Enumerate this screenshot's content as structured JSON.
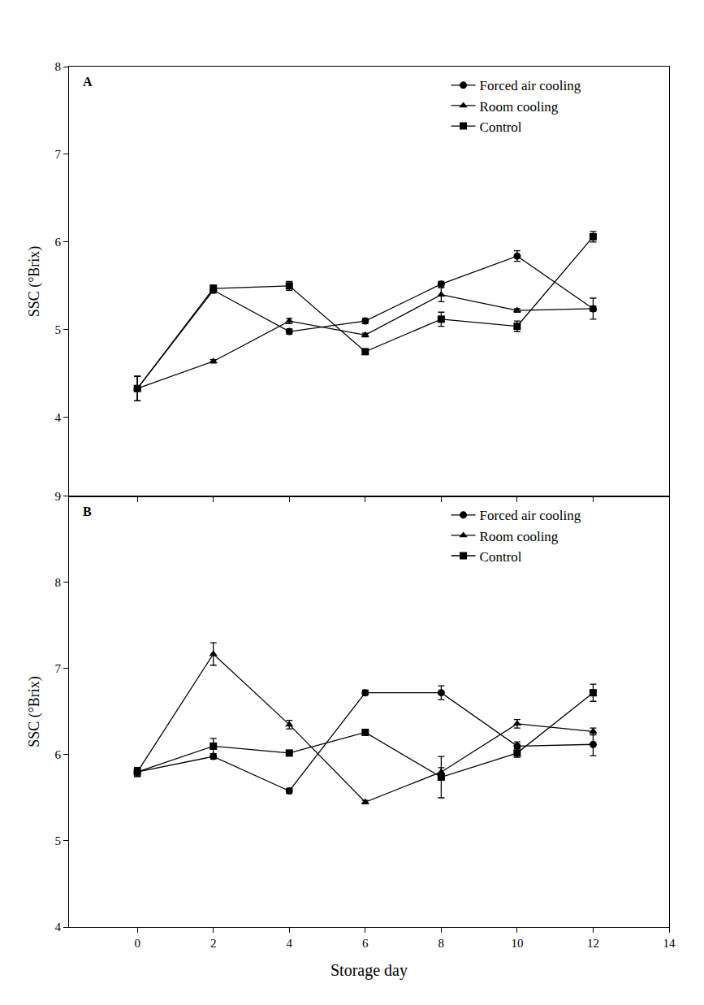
{
  "chart_data": [
    {
      "type": "line",
      "title": "A",
      "ylabel": "SSC (°Brix)",
      "x": [
        0,
        2,
        4,
        6,
        8,
        10,
        12
      ],
      "xlim": [
        -1.8,
        14
      ],
      "xticks": [
        0,
        2,
        4,
        6,
        8,
        10,
        12,
        14
      ],
      "ylim": [
        3.1,
        8
      ],
      "yticks": [
        4,
        5,
        6,
        7,
        8
      ],
      "tick_labels": "y",
      "grid": false,
      "legend": "upper right",
      "series": [
        {
          "name": "Forced air cooling",
          "color": "#000000",
          "marker": "circle",
          "line_style": "solid",
          "values": [
            4.33,
            5.45,
            4.98,
            5.1,
            5.52,
            5.84,
            5.24
          ],
          "errors": [
            0.14,
            0.03,
            0.03,
            0.03,
            0.03,
            0.06,
            0.03
          ]
        },
        {
          "name": "Room cooling",
          "color": "#000000",
          "marker": "triangle-up",
          "line_style": "solid",
          "values": [
            4.33,
            4.64,
            5.1,
            4.94,
            5.4,
            5.22,
            5.24
          ],
          "errors": [
            0.14,
            0.02,
            0.03,
            0.02,
            0.08,
            0.02,
            0.12
          ]
        },
        {
          "name": "Control",
          "color": "#000000",
          "marker": "square",
          "line_style": "solid",
          "values": [
            4.33,
            5.47,
            5.5,
            4.75,
            5.12,
            5.04,
            6.06
          ],
          "errors": [
            0.14,
            0.04,
            0.05,
            0.03,
            0.08,
            0.06,
            0.06
          ]
        }
      ]
    },
    {
      "type": "line",
      "title": "B",
      "xlabel": "Storage day",
      "ylabel": "SSC (°Brix)",
      "x": [
        0,
        2,
        4,
        6,
        8,
        10,
        12
      ],
      "xlim": [
        -1.8,
        14
      ],
      "xticks": [
        0,
        2,
        4,
        6,
        8,
        10,
        12,
        14
      ],
      "ylim": [
        4,
        9
      ],
      "yticks": [
        4,
        5,
        6,
        7,
        8,
        9
      ],
      "grid": false,
      "legend": "upper right",
      "series": [
        {
          "name": "Forced air cooling",
          "color": "#000000",
          "marker": "circle",
          "line_style": "solid",
          "values": [
            5.8,
            5.98,
            5.58,
            6.72,
            6.72,
            6.1,
            6.12
          ],
          "errors": [
            0.05,
            0.03,
            0.03,
            0.03,
            0.08,
            0.05,
            0.13
          ]
        },
        {
          "name": "Room cooling",
          "color": "#000000",
          "marker": "triangle-up",
          "line_style": "solid",
          "values": [
            5.8,
            7.17,
            6.35,
            5.45,
            5.8,
            6.36,
            6.27
          ],
          "errors": [
            0.05,
            0.13,
            0.05,
            0.02,
            0.05,
            0.05,
            0.04
          ]
        },
        {
          "name": "Control",
          "color": "#000000",
          "marker": "square",
          "line_style": "solid",
          "values": [
            5.8,
            6.1,
            6.02,
            6.26,
            5.74,
            6.02,
            6.72
          ],
          "errors": [
            0.05,
            0.09,
            0.03,
            0.03,
            0.24,
            0.05,
            0.1
          ]
        }
      ]
    }
  ]
}
